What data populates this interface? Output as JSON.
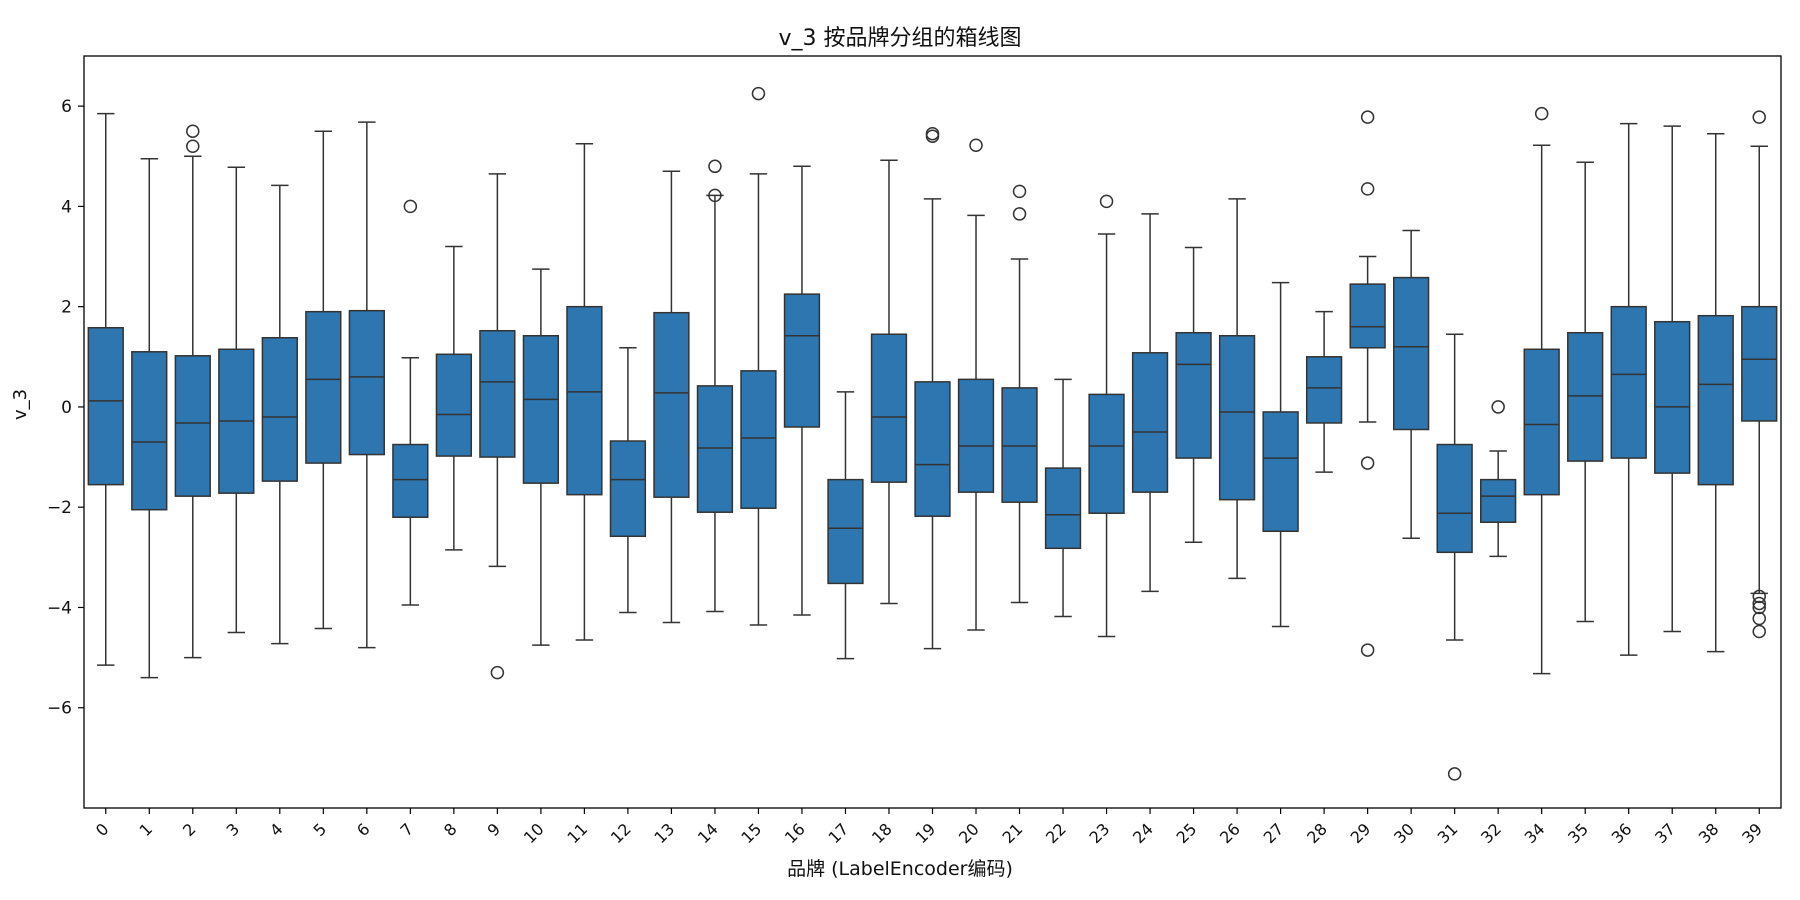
{
  "chart_data": {
    "type": "box",
    "title": "v_3 按品牌分组的箱线图",
    "xlabel": "品牌 (LabelEncoder编码)",
    "ylabel": "v_3",
    "ylim": [
      -8,
      7
    ],
    "yticks": [
      -6,
      -4,
      -2,
      0,
      2,
      4,
      6
    ],
    "box_color": "#2e76b0",
    "line_color": "#333333",
    "boxes": [
      {
        "label": "0",
        "whislo": -5.15,
        "q1": -1.55,
        "med": 0.12,
        "q3": 1.58,
        "whishi": 5.85,
        "fliers": []
      },
      {
        "label": "1",
        "whislo": -5.4,
        "q1": -2.05,
        "med": -0.7,
        "q3": 1.1,
        "whishi": 4.95,
        "fliers": []
      },
      {
        "label": "2",
        "whislo": -5.0,
        "q1": -1.78,
        "med": -0.32,
        "q3": 1.02,
        "whishi": 5.0,
        "fliers": [
          5.5,
          5.2
        ]
      },
      {
        "label": "3",
        "whislo": -4.5,
        "q1": -1.72,
        "med": -0.28,
        "q3": 1.15,
        "whishi": 4.78,
        "fliers": []
      },
      {
        "label": "4",
        "whislo": -4.72,
        "q1": -1.48,
        "med": -0.2,
        "q3": 1.38,
        "whishi": 4.42,
        "fliers": []
      },
      {
        "label": "5",
        "whislo": -4.42,
        "q1": -1.12,
        "med": 0.55,
        "q3": 1.9,
        "whishi": 5.5,
        "fliers": []
      },
      {
        "label": "6",
        "whislo": -4.8,
        "q1": -0.95,
        "med": 0.6,
        "q3": 1.92,
        "whishi": 5.68,
        "fliers": []
      },
      {
        "label": "7",
        "whislo": -3.95,
        "q1": -2.2,
        "med": -1.45,
        "q3": -0.75,
        "whishi": 0.98,
        "fliers": [
          4.0
        ]
      },
      {
        "label": "8",
        "whislo": -2.85,
        "q1": -0.98,
        "med": -0.15,
        "q3": 1.05,
        "whishi": 3.2,
        "fliers": []
      },
      {
        "label": "9",
        "whislo": -3.18,
        "q1": -1.0,
        "med": 0.5,
        "q3": 1.52,
        "whishi": 4.65,
        "fliers": [
          -5.3
        ]
      },
      {
        "label": "10",
        "whislo": -4.75,
        "q1": -1.52,
        "med": 0.15,
        "q3": 1.42,
        "whishi": 2.75,
        "fliers": []
      },
      {
        "label": "11",
        "whislo": -4.65,
        "q1": -1.75,
        "med": 0.3,
        "q3": 2.0,
        "whishi": 5.25,
        "fliers": []
      },
      {
        "label": "12",
        "whislo": -4.1,
        "q1": -2.58,
        "med": -1.45,
        "q3": -0.68,
        "whishi": 1.18,
        "fliers": []
      },
      {
        "label": "13",
        "whislo": -4.3,
        "q1": -1.8,
        "med": 0.28,
        "q3": 1.88,
        "whishi": 4.7,
        "fliers": []
      },
      {
        "label": "14",
        "whislo": -4.08,
        "q1": -2.1,
        "med": -0.82,
        "q3": 0.42,
        "whishi": 4.22,
        "fliers": [
          4.8,
          4.22
        ]
      },
      {
        "label": "15",
        "whislo": -4.35,
        "q1": -2.02,
        "med": -0.62,
        "q3": 0.72,
        "whishi": 4.65,
        "fliers": [
          6.25
        ]
      },
      {
        "label": "16",
        "whislo": -4.15,
        "q1": -0.4,
        "med": 1.42,
        "q3": 2.25,
        "whishi": 4.8,
        "fliers": []
      },
      {
        "label": "17",
        "whislo": -5.02,
        "q1": -3.52,
        "med": -2.42,
        "q3": -1.45,
        "whishi": 0.3,
        "fliers": []
      },
      {
        "label": "18",
        "whislo": -3.92,
        "q1": -1.5,
        "med": -0.2,
        "q3": 1.45,
        "whishi": 4.92,
        "fliers": []
      },
      {
        "label": "19",
        "whislo": -4.82,
        "q1": -2.18,
        "med": -1.15,
        "q3": 0.5,
        "whishi": 4.15,
        "fliers": [
          5.45,
          5.4
        ]
      },
      {
        "label": "20",
        "whislo": -4.45,
        "q1": -1.7,
        "med": -0.78,
        "q3": 0.55,
        "whishi": 3.82,
        "fliers": [
          5.22
        ]
      },
      {
        "label": "21",
        "whislo": -3.9,
        "q1": -1.9,
        "med": -0.78,
        "q3": 0.38,
        "whishi": 2.95,
        "fliers": [
          4.3,
          3.85
        ]
      },
      {
        "label": "22",
        "whislo": -4.18,
        "q1": -2.82,
        "med": -2.15,
        "q3": -1.22,
        "whishi": 0.55,
        "fliers": []
      },
      {
        "label": "23",
        "whislo": -4.58,
        "q1": -2.12,
        "med": -0.78,
        "q3": 0.25,
        "whishi": 3.45,
        "fliers": [
          4.1
        ]
      },
      {
        "label": "24",
        "whislo": -3.68,
        "q1": -1.7,
        "med": -0.5,
        "q3": 1.08,
        "whishi": 3.85,
        "fliers": []
      },
      {
        "label": "25",
        "whislo": -2.7,
        "q1": -1.02,
        "med": 0.85,
        "q3": 1.48,
        "whishi": 3.18,
        "fliers": []
      },
      {
        "label": "26",
        "whislo": -3.42,
        "q1": -1.85,
        "med": -0.1,
        "q3": 1.42,
        "whishi": 4.15,
        "fliers": []
      },
      {
        "label": "27",
        "whislo": -4.38,
        "q1": -2.48,
        "med": -1.02,
        "q3": -0.1,
        "whishi": 2.48,
        "fliers": []
      },
      {
        "label": "28",
        "whislo": -1.3,
        "q1": -0.32,
        "med": 0.38,
        "q3": 1.0,
        "whishi": 1.9,
        "fliers": []
      },
      {
        "label": "29",
        "whislo": -0.3,
        "q1": 1.18,
        "med": 1.6,
        "q3": 2.45,
        "whishi": 3.0,
        "fliers": [
          5.78,
          4.35,
          -1.12,
          -4.85
        ]
      },
      {
        "label": "30",
        "whislo": -2.62,
        "q1": -0.45,
        "med": 1.2,
        "q3": 2.58,
        "whishi": 3.52,
        "fliers": []
      },
      {
        "label": "31",
        "whislo": -4.65,
        "q1": -2.9,
        "med": -2.12,
        "q3": -0.75,
        "whishi": 1.45,
        "fliers": [
          -7.32
        ]
      },
      {
        "label": "32",
        "whislo": -2.98,
        "q1": -2.3,
        "med": -1.78,
        "q3": -1.45,
        "whishi": -0.88,
        "fliers": [
          0.0
        ]
      },
      {
        "label": "34",
        "whislo": -5.32,
        "q1": -1.75,
        "med": -0.35,
        "q3": 1.15,
        "whishi": 5.22,
        "fliers": [
          5.85
        ]
      },
      {
        "label": "35",
        "whislo": -4.28,
        "q1": -1.08,
        "med": 0.22,
        "q3": 1.48,
        "whishi": 4.88,
        "fliers": []
      },
      {
        "label": "36",
        "whislo": -4.95,
        "q1": -1.02,
        "med": 0.65,
        "q3": 2.0,
        "whishi": 5.65,
        "fliers": []
      },
      {
        "label": "37",
        "whislo": -4.48,
        "q1": -1.32,
        "med": 0.0,
        "q3": 1.7,
        "whishi": 5.6,
        "fliers": []
      },
      {
        "label": "38",
        "whislo": -4.88,
        "q1": -1.55,
        "med": 0.45,
        "q3": 1.82,
        "whishi": 5.45,
        "fliers": []
      },
      {
        "label": "39",
        "whislo": -3.72,
        "q1": -0.28,
        "med": 0.95,
        "q3": 2.0,
        "whishi": 5.2,
        "fliers": [
          5.78,
          -3.78,
          -3.92,
          -4.0,
          -4.22,
          -4.48
        ]
      }
    ]
  }
}
